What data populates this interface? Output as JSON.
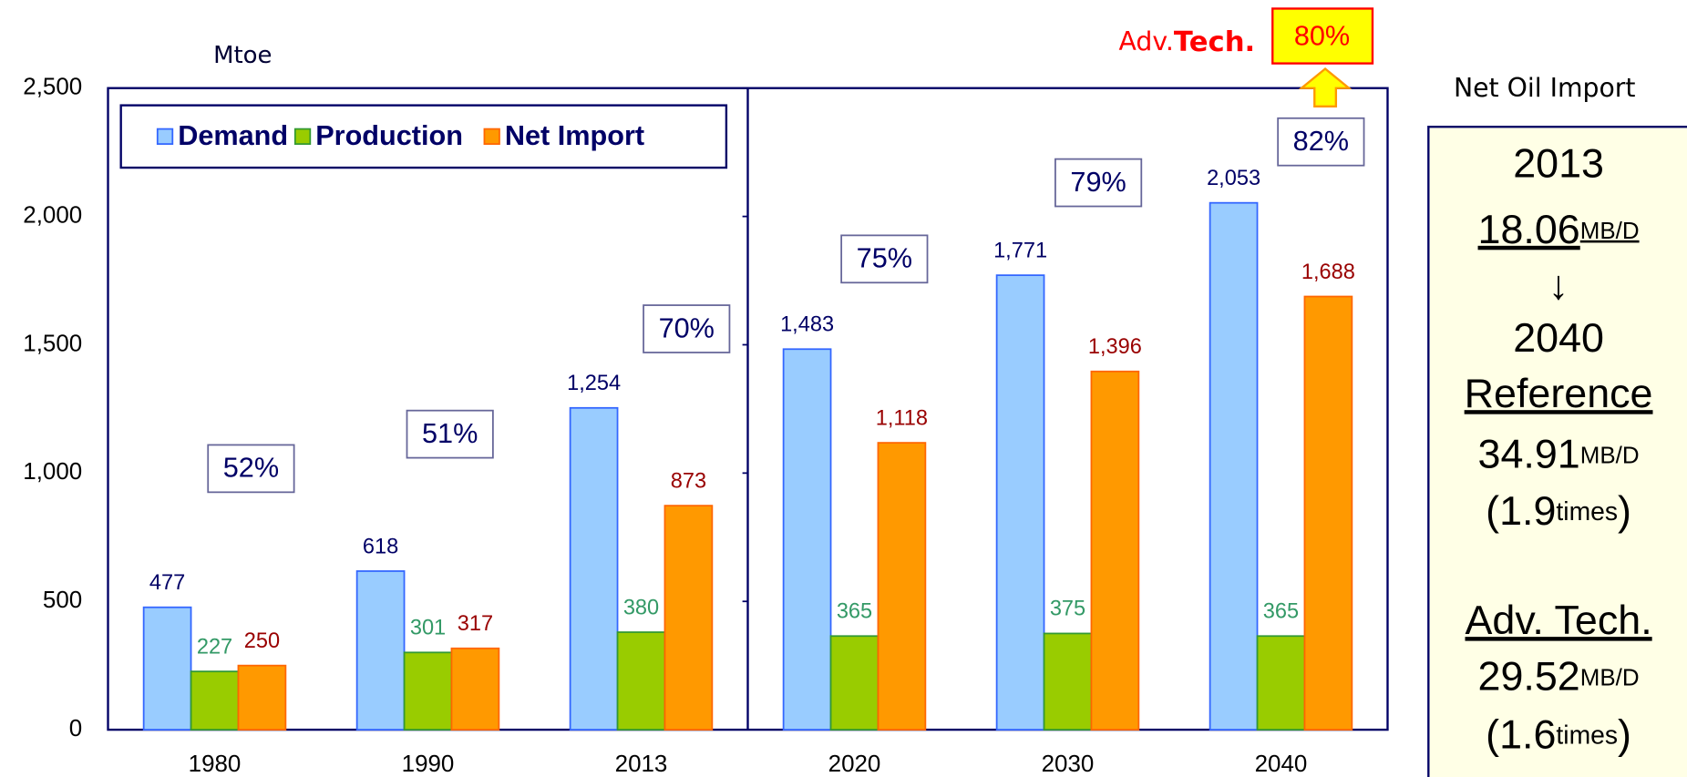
{
  "chart_data": {
    "type": "bar",
    "y_label": "Mtoe",
    "categories": [
      "1980",
      "1990",
      "2013",
      "2020",
      "2030",
      "2040"
    ],
    "series": [
      {
        "name": "Demand",
        "color": "#99ccff",
        "stroke": "#3366ff",
        "label_color": "#000066",
        "values": [
          477,
          618,
          1254,
          1483,
          1771,
          2053
        ],
        "value_labels": [
          "477",
          "618",
          "1,254",
          "1,483",
          "1,771",
          "2,053"
        ]
      },
      {
        "name": "Production",
        "color": "#99cc00",
        "stroke": "#339933",
        "label_color": "#339966",
        "values": [
          227,
          301,
          380,
          365,
          375,
          365
        ],
        "value_labels": [
          "227",
          "301",
          "380",
          "365",
          "375",
          "365"
        ]
      },
      {
        "name": "Net Import",
        "color": "#ff9900",
        "stroke": "#ff6600",
        "label_color": "#990000",
        "values": [
          250,
          317,
          873,
          1118,
          1396,
          1688
        ],
        "value_labels": [
          "250",
          "317",
          "873",
          "1,118",
          "1,396",
          "1,688"
        ]
      }
    ],
    "ylim": [
      0,
      2500
    ],
    "yticks": [
      0,
      500,
      {
        "value": 1000,
        "label": "1,000"
      },
      {
        "value": 1500,
        "label": "1,500"
      },
      {
        "value": 2000,
        "label": "2,000"
      },
      {
        "value": 2500,
        "label": "2,500"
      }
    ],
    "import_shares": [
      "52%",
      "51%",
      "70%",
      "75%",
      "79%",
      "82%"
    ],
    "adv_tech": {
      "prefix": "Adv.",
      "word": "Tech.",
      "share": "80%"
    },
    "legend": "top-left"
  },
  "net_oil_import": {
    "title": "Net Oil Import",
    "base_year": "2013",
    "base_value": "18.06",
    "base_unit": "MB/D",
    "arrow": "↓",
    "target_year": "2040",
    "reference": {
      "label": "Reference",
      "value": "34.91",
      "unit": "MB/D",
      "ratio": [
        "(1.9",
        "times",
        ")"
      ]
    },
    "adv_tech": {
      "label": "Adv. Tech.",
      "value": "29.52",
      "unit": "MB/D",
      "ratio": [
        "(1.6",
        "times",
        ")"
      ]
    }
  }
}
